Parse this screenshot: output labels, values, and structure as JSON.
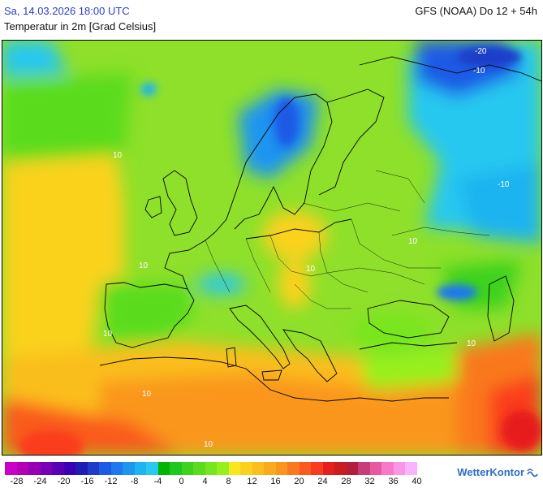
{
  "header": {
    "datetime": "Sa, 14.03.2026 18:00 UTC",
    "model_run": "GFS (NOAA) Do 12 + 54h",
    "parameter": "Temperatur in 2m [Grad Celsius]"
  },
  "map": {
    "region": "Europe",
    "isoline_labels": [
      "-20",
      "-10",
      "-10",
      "10",
      "10",
      "10",
      "10",
      "10",
      "10",
      "10",
      "10"
    ]
  },
  "legend": {
    "colors": [
      "#c800c8",
      "#b400b4",
      "#9600b4",
      "#7800b4",
      "#5a00b4",
      "#3c00b4",
      "#1e1eb4",
      "#1e3cc8",
      "#1e5ae6",
      "#1e78f0",
      "#1e96f0",
      "#1eb4f0",
      "#28c8f0",
      "#00b400",
      "#1ec81e",
      "#3cd21e",
      "#5adc1e",
      "#78e61e",
      "#96f01e",
      "#fae61e",
      "#fad21e",
      "#fabe1e",
      "#faaa1e",
      "#fa961e",
      "#fa781e",
      "#fa5a1e",
      "#fa3c1e",
      "#e61e1e",
      "#c81e1e",
      "#b41e3c",
      "#c83c78",
      "#e65aa0",
      "#fa78c8",
      "#fa96e6",
      "#fab4fa"
    ],
    "ticks": [
      "-28",
      "-24",
      "-20",
      "-16",
      "-12",
      "-8",
      "-4",
      "0",
      "4",
      "8",
      "12",
      "16",
      "20",
      "24",
      "28",
      "32",
      "36",
      "40"
    ]
  },
  "brand": {
    "name": "WetterKontor",
    "icon": "wave-logo-icon",
    "color": "#2e6fc4"
  }
}
